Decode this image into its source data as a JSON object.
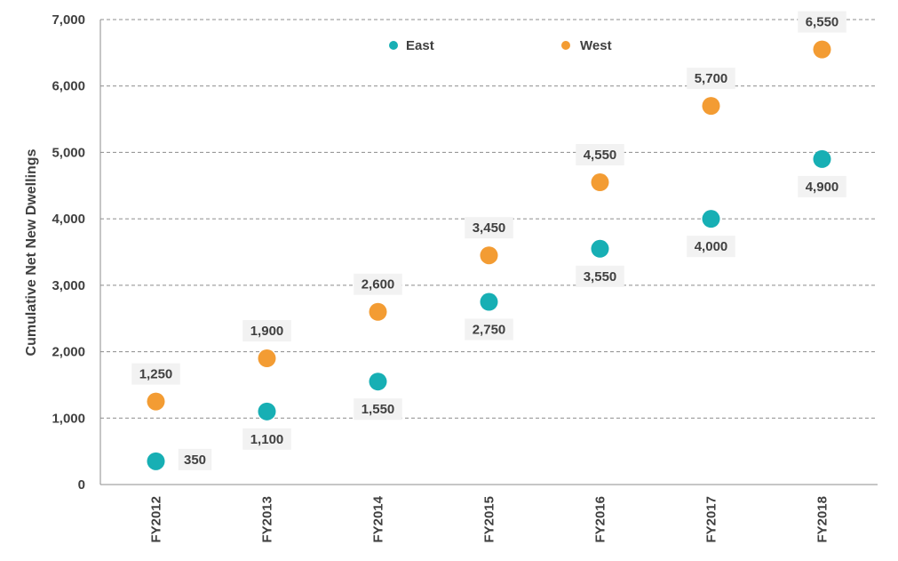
{
  "chart_data": {
    "type": "scatter",
    "title": "",
    "xlabel": "",
    "ylabel": "Cumulative Net New Dwellings",
    "categories": [
      "FY2012",
      "FY2013",
      "FY2014",
      "FY2015",
      "FY2016",
      "FY2017",
      "FY2018"
    ],
    "ylim": [
      0,
      7000
    ],
    "yticks": [
      0,
      1000,
      2000,
      3000,
      4000,
      5000,
      6000,
      7000
    ],
    "ytick_labels": [
      "0",
      "1,000",
      "2,000",
      "3,000",
      "4,000",
      "5,000",
      "6,000",
      "7,000"
    ],
    "grid": true,
    "legend_position": "top-center",
    "series": [
      {
        "name": "East",
        "color": "#17AFB4",
        "values": [
          350,
          1100,
          1550,
          2750,
          3550,
          4000,
          4900
        ],
        "labels": [
          "350",
          "1,100",
          "1,550",
          "2,750",
          "3,550",
          "4,000",
          "4,900"
        ]
      },
      {
        "name": "West",
        "color": "#F39C33",
        "values": [
          1250,
          1900,
          2600,
          3450,
          4550,
          5700,
          6550
        ],
        "labels": [
          "1,250",
          "1,900",
          "2,600",
          "3,450",
          "4,550",
          "5,700",
          "6,550"
        ]
      }
    ]
  }
}
